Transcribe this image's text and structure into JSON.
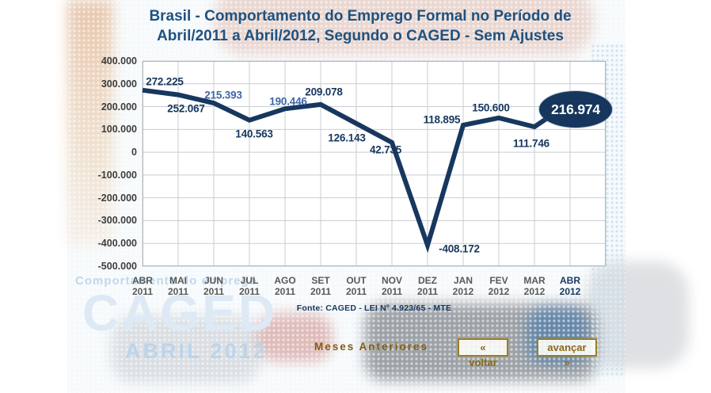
{
  "page": {
    "title_line1": "Brasil - Comportamento do Emprego Formal no Período de",
    "title_line2": "Abril/2011 a Abril/2012, Segundo o CAGED - Sem Ajustes"
  },
  "watermark": {
    "tagline": "Comportamento do emprego",
    "brand": "CAGED",
    "edition": "ABRIL 2012"
  },
  "chart_data": {
    "type": "line",
    "title": "Brasil - Comportamento do Emprego Formal no Período de Abril/2011 a Abril/2012, Segundo o CAGED - Sem Ajustes",
    "categories": [
      "ABR 2011",
      "MAI 2011",
      "JUN 2011",
      "JUL 2011",
      "AGO 2011",
      "SET 2011",
      "OUT 2011",
      "NOV 2011",
      "DEZ 2011",
      "JAN 2012",
      "FEV 2012",
      "MAR 2012",
      "ABR 2012"
    ],
    "values": [
      272225,
      252067,
      215393,
      140563,
      190446,
      209078,
      126143,
      42735,
      -408172,
      118895,
      150600,
      111746,
      216974
    ],
    "point_labels": [
      "272.225",
      "252.067",
      "215.393",
      "140.563",
      "190.446",
      "209.078",
      "126.143",
      "42.735",
      "-408.172",
      "118.895",
      "150.600",
      "111.746",
      "216.974"
    ],
    "label_offsets": [
      [
        28,
        -11
      ],
      [
        10,
        17
      ],
      [
        12,
        -10
      ],
      [
        6,
        17
      ],
      [
        4,
        -9
      ],
      [
        4,
        -16
      ],
      [
        -12,
        18
      ],
      [
        -8,
        9
      ],
      [
        40,
        4
      ],
      [
        -27,
        -7
      ],
      [
        -10,
        -13
      ],
      [
        -4,
        21
      ],
      null
    ],
    "muted_label_indexes": [
      2,
      4
    ],
    "highlight_index": 12,
    "highlight_label": "216.974",
    "current_category_index": 12,
    "y_tick_labels": [
      "400.000",
      "300.000",
      "200.000",
      "100.000",
      "0",
      "-100.000",
      "-200.000",
      "-300.000",
      "-400.000",
      "-500.000"
    ],
    "y_tick_values": [
      400000,
      300000,
      200000,
      100000,
      0,
      -100000,
      -200000,
      -300000,
      -400000,
      -500000
    ],
    "ylim": [
      -500000,
      400000
    ],
    "grid": true,
    "legend": false,
    "xlabel": "",
    "ylabel": "",
    "line_color": "#17375e",
    "source": "Fonte: CAGED - LEI Nº 4.923/65 - MTE"
  },
  "nav": {
    "history_label": "Meses Anteriores",
    "back_label": "« voltar",
    "forward_label": "avançar »"
  },
  "colors": {
    "line": "#17375e",
    "title": "#1f5280",
    "badge_bg": "#17365d",
    "badge_text": "#ffffff",
    "month_label": "#595959",
    "month_current": "#17375e",
    "y_tick": "#3d3d3d",
    "muted_point_label": "#3e66a7",
    "nav_brown": "#8b6914",
    "watermark_blue": "#dde9f4",
    "gridline": "#c9ced3"
  }
}
